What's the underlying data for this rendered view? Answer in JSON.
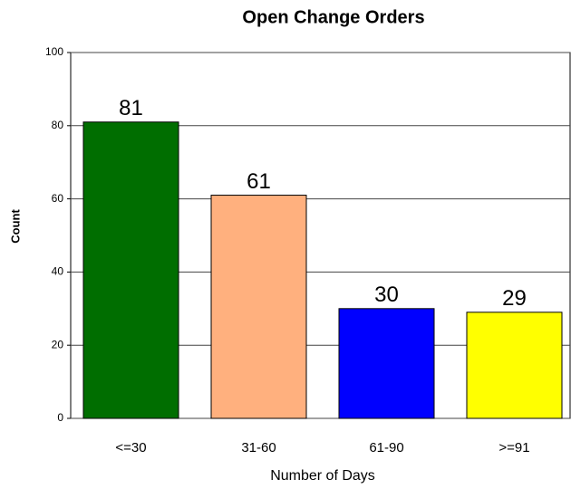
{
  "chart_data": {
    "type": "bar",
    "title": "Open Change Orders",
    "ylabel": "Count",
    "xlabel": "Number of Days",
    "categories": [
      "<=30",
      "31-60",
      "61-90",
      ">=91"
    ],
    "values": [
      81,
      61,
      30,
      29
    ],
    "colors": [
      "#006e00",
      "#ffb07e",
      "#0000ff",
      "#ffff00"
    ],
    "ylim": [
      0,
      100
    ],
    "yticks": [
      0,
      20,
      40,
      60,
      80,
      100
    ],
    "grid": true
  }
}
